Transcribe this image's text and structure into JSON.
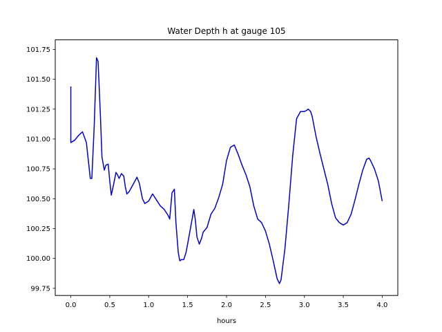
{
  "chart_data": {
    "type": "line",
    "title": "Water Depth h at gauge 105",
    "xlabel": "hours",
    "ylabel": "",
    "xlim": [
      -0.2,
      4.2
    ],
    "ylim": [
      99.69,
      101.83
    ],
    "xticks": [
      0.0,
      0.5,
      1.0,
      1.5,
      2.0,
      2.5,
      3.0,
      3.5,
      4.0
    ],
    "xtick_labels": [
      "0.0",
      "0.5",
      "1.0",
      "1.5",
      "2.0",
      "2.5",
      "3.0",
      "3.5",
      "4.0"
    ],
    "yticks": [
      99.75,
      100.0,
      100.25,
      100.5,
      100.75,
      101.0,
      101.25,
      101.5,
      101.75
    ],
    "ytick_labels": [
      "99.75",
      "100.00",
      "100.25",
      "100.50",
      "100.75",
      "101.00",
      "101.25",
      "101.50",
      "101.75"
    ],
    "grid": false,
    "series": [
      {
        "color": "#0000cc",
        "x": [
          0.0,
          0.0,
          0.0,
          0.05,
          0.1,
          0.15,
          0.2,
          0.25,
          0.27,
          0.3,
          0.33,
          0.35,
          0.38,
          0.4,
          0.43,
          0.45,
          0.48,
          0.5,
          0.52,
          0.55,
          0.58,
          0.6,
          0.62,
          0.65,
          0.68,
          0.7,
          0.72,
          0.75,
          0.8,
          0.85,
          0.88,
          0.92,
          0.95,
          1.0,
          1.05,
          1.1,
          1.15,
          1.2,
          1.25,
          1.27,
          1.3,
          1.33,
          1.35,
          1.38,
          1.4,
          1.42,
          1.45,
          1.48,
          1.5,
          1.55,
          1.58,
          1.6,
          1.62,
          1.65,
          1.68,
          1.7,
          1.75,
          1.8,
          1.85,
          1.9,
          1.95,
          2.0,
          2.05,
          2.1,
          2.15,
          2.2,
          2.25,
          2.3,
          2.35,
          2.4,
          2.45,
          2.5,
          2.55,
          2.6,
          2.65,
          2.68,
          2.7,
          2.75,
          2.8,
          2.85,
          2.9,
          2.95,
          3.0,
          3.03,
          3.05,
          3.08,
          3.1,
          3.15,
          3.2,
          3.25,
          3.3,
          3.35,
          3.4,
          3.45,
          3.5,
          3.55,
          3.6,
          3.65,
          3.7,
          3.75,
          3.8,
          3.83,
          3.85,
          3.9,
          3.95,
          4.0
        ],
        "y": [
          101.44,
          101.44,
          100.97,
          100.99,
          101.03,
          101.06,
          100.97,
          100.67,
          100.67,
          101.1,
          101.68,
          101.65,
          101.2,
          100.85,
          100.74,
          100.78,
          100.79,
          100.65,
          100.53,
          100.62,
          100.72,
          100.7,
          100.67,
          100.71,
          100.69,
          100.6,
          100.54,
          100.56,
          100.62,
          100.68,
          100.63,
          100.5,
          100.46,
          100.48,
          100.54,
          100.49,
          100.44,
          100.41,
          100.36,
          100.33,
          100.55,
          100.58,
          100.3,
          100.05,
          99.98,
          99.99,
          99.99,
          100.05,
          100.12,
          100.3,
          100.41,
          100.32,
          100.18,
          100.12,
          100.17,
          100.22,
          100.26,
          100.37,
          100.42,
          100.51,
          100.62,
          100.82,
          100.93,
          100.95,
          100.87,
          100.78,
          100.7,
          100.6,
          100.44,
          100.33,
          100.3,
          100.23,
          100.12,
          99.98,
          99.83,
          99.79,
          99.82,
          100.08,
          100.45,
          100.86,
          101.17,
          101.23,
          101.23,
          101.24,
          101.25,
          101.23,
          101.19,
          101.02,
          100.88,
          100.75,
          100.62,
          100.46,
          100.34,
          100.3,
          100.28,
          100.3,
          100.37,
          100.49,
          100.62,
          100.74,
          100.83,
          100.84,
          100.82,
          100.75,
          100.65,
          100.48
        ]
      }
    ]
  }
}
